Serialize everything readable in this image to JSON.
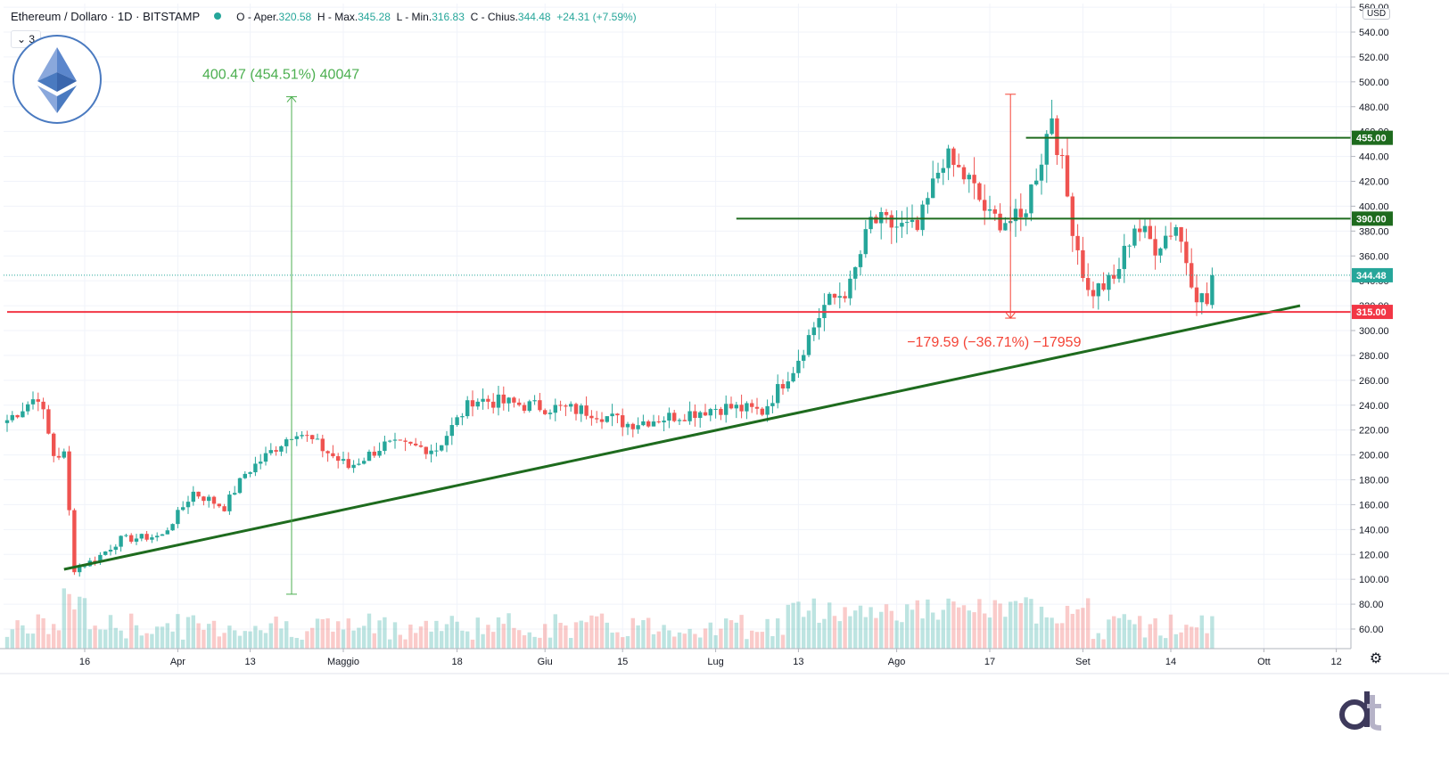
{
  "header": {
    "symbol": "Ethereum / Dollaro · 1D · BITSTAMP",
    "o_label": "O - Aper.",
    "o_value": "320.58",
    "h_label": "H - Max.",
    "h_value": "345.28",
    "l_label": "L - Min.",
    "l_value": "316.83",
    "c_label": "C - Chius.",
    "c_value": "344.48",
    "change": "+24.31 (+7.59%)"
  },
  "legend_badge": "3",
  "currency": "USD",
  "icons": {
    "logo": "ethereum-logo",
    "settings": "gear-icon",
    "brand": "dt-brand-logo"
  },
  "colors": {
    "up": "#26a69a",
    "down": "#ef5350",
    "trendline": "#1e6b1e",
    "resistance": "#1e6b1e",
    "support": "#f23645",
    "measure_up": "#4caf50",
    "measure_down": "#f44336"
  },
  "chart_data": {
    "type": "candlestick",
    "x_ticks": [
      "16",
      "Apr",
      "13",
      "Maggio",
      "18",
      "Giu",
      "15",
      "Lug",
      "13",
      "Ago",
      "17",
      "Set",
      "14",
      "Ott",
      "12"
    ],
    "y_ticks": [
      60,
      80,
      100,
      120,
      140,
      160,
      180,
      200,
      220,
      240,
      260,
      280,
      300,
      320,
      340,
      360,
      380,
      400,
      420,
      440,
      460,
      480,
      500,
      520,
      540,
      560
    ],
    "ylim": [
      44,
      565
    ],
    "anchors": [
      {
        "day": 0,
        "price": 228
      },
      {
        "day": 6,
        "price": 248
      },
      {
        "day": 9,
        "price": 200
      },
      {
        "day": 11,
        "price": 200
      },
      {
        "day": 13,
        "price": 108
      },
      {
        "day": 17,
        "price": 116
      },
      {
        "day": 22,
        "price": 132
      },
      {
        "day": 30,
        "price": 135
      },
      {
        "day": 36,
        "price": 170
      },
      {
        "day": 42,
        "price": 158
      },
      {
        "day": 46,
        "price": 185
      },
      {
        "day": 56,
        "price": 220
      },
      {
        "day": 66,
        "price": 190
      },
      {
        "day": 73,
        "price": 208
      },
      {
        "day": 83,
        "price": 205
      },
      {
        "day": 90,
        "price": 245
      },
      {
        "day": 100,
        "price": 240
      },
      {
        "day": 113,
        "price": 235
      },
      {
        "day": 120,
        "price": 225
      },
      {
        "day": 130,
        "price": 232
      },
      {
        "day": 137,
        "price": 238
      },
      {
        "day": 140,
        "price": 238
      },
      {
        "day": 146,
        "price": 235
      },
      {
        "day": 152,
        "price": 270
      },
      {
        "day": 158,
        "price": 320
      },
      {
        "day": 163,
        "price": 335
      },
      {
        "day": 167,
        "price": 388
      },
      {
        "day": 176,
        "price": 380
      },
      {
        "day": 181,
        "price": 440
      },
      {
        "day": 186,
        "price": 420
      },
      {
        "day": 190,
        "price": 390
      },
      {
        "day": 196,
        "price": 388
      },
      {
        "day": 200,
        "price": 440
      },
      {
        "day": 202,
        "price": 475
      },
      {
        "day": 206,
        "price": 385
      },
      {
        "day": 209,
        "price": 330
      },
      {
        "day": 214,
        "price": 340
      },
      {
        "day": 218,
        "price": 385
      },
      {
        "day": 222,
        "price": 368
      },
      {
        "day": 226,
        "price": 385
      },
      {
        "day": 230,
        "price": 330
      },
      {
        "day": 232,
        "price": 322
      },
      {
        "day": 233,
        "price": 344
      }
    ],
    "last_price": 344.48,
    "last_price_label": "344.48",
    "levels": [
      {
        "name": "resistance-455",
        "price": 455,
        "label": "455.00",
        "color": "#1e6b1e",
        "from_day": 197
      },
      {
        "name": "resistance-390",
        "price": 390,
        "label": "390.00",
        "color": "#1e6b1e",
        "from_day": 141
      },
      {
        "name": "support-315",
        "price": 315,
        "label": "315.00",
        "color": "#f23645",
        "from_day": 0
      }
    ],
    "trendline": {
      "from": {
        "day": 11,
        "price": 108
      },
      "to": {
        "day": 250,
        "price": 320
      }
    },
    "measures": [
      {
        "name": "measure-up",
        "day": 55,
        "from_price": 88,
        "to_price": 488,
        "label": "400.47 (454.51%) 40047",
        "color": "#4caf50"
      },
      {
        "name": "measure-down",
        "day": 194,
        "from_price": 490,
        "to_price": 310,
        "label": "−179.59 (−36.71%) −17959",
        "color": "#f44336"
      }
    ]
  }
}
